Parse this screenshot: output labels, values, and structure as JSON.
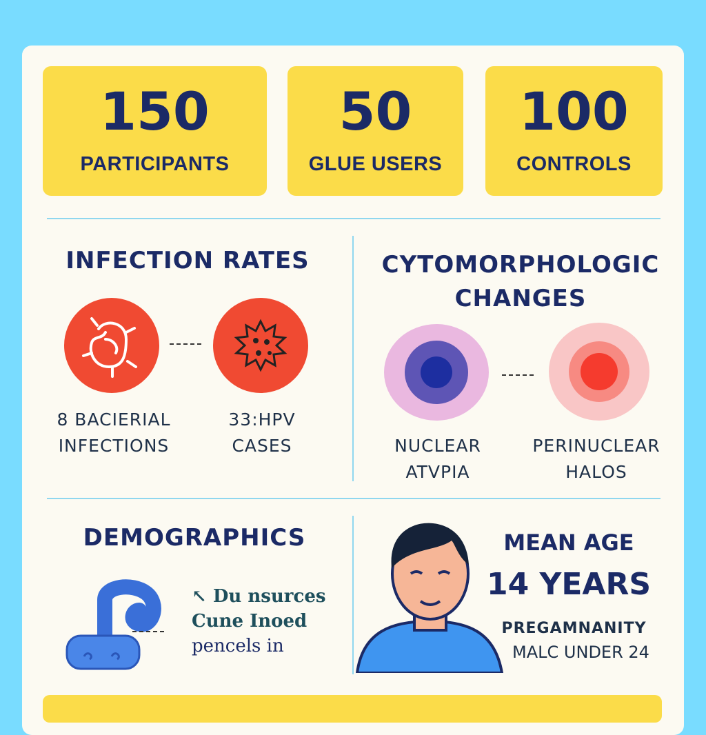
{
  "stats": [
    {
      "value": "150",
      "label": "PARTICIPANTS"
    },
    {
      "value": "50",
      "label": "GLUE USERS"
    },
    {
      "value": "100",
      "label": "CONTROLS"
    }
  ],
  "infection": {
    "title": "INFECTION RATES",
    "left": [
      "8 BACIERIAL",
      "INFECTIONS"
    ],
    "right": [
      "33:HPV",
      "CASES"
    ]
  },
  "cyto": {
    "title": [
      "CYTOMORPHOLOGIC",
      "CHANGES"
    ],
    "left": [
      "NUCLEAR",
      "ATVPIA"
    ],
    "right": [
      "PERINUCLEAR",
      "HALOS"
    ]
  },
  "demographics": {
    "title": "DEMOGRAPHICS",
    "lines": [
      "↖ Du nsurces",
      "Cune Inoed",
      "pencels in"
    ]
  },
  "age": {
    "title": "MEAN AGE",
    "value": "14 YEARS",
    "line1": "PREGAMNANITY",
    "line2": "MALC UNDER 24"
  },
  "colors": {
    "background": "#79dcff",
    "card": "#fcfaf2",
    "accent": "#fbdc49",
    "text": "#1b2a66",
    "red": "#f04a32"
  }
}
